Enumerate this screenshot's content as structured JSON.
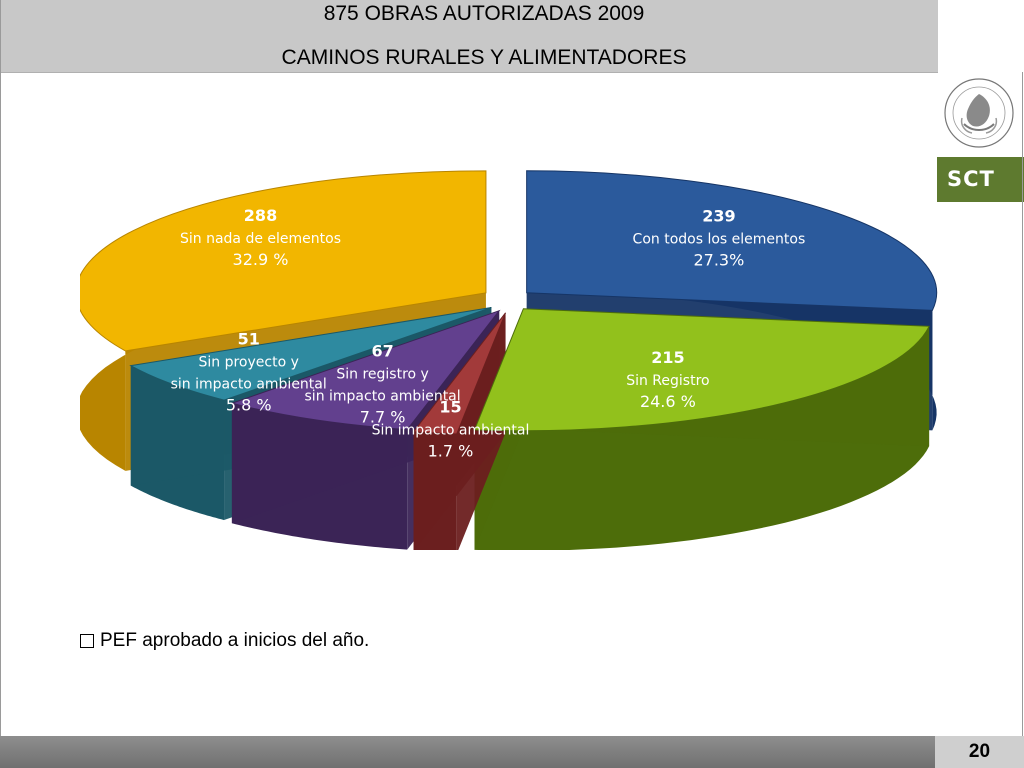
{
  "header": {
    "title": "875 OBRAS AUTORIZADAS 2009",
    "subtitle": "CAMINOS RURALES Y ALIMENTADORES"
  },
  "logo": {
    "badge_text": "SCT",
    "seal_text": "ESTADOS UNIDOS MEXICANOS"
  },
  "note": "PEF aprobado a inicios del año.",
  "page_number": "20",
  "colors": {
    "header_bg": "#c8c8c8",
    "sct_green": "#5e7a2f",
    "footer": "#808080"
  },
  "chart_data": {
    "type": "pie",
    "slices": [
      {
        "value": "239",
        "label": "Con todos los elementos",
        "percent": "27.3%",
        "pct": 27.3,
        "color": "#2b5a9c",
        "dark": "#163566"
      },
      {
        "value": "215",
        "label": "Sin Registro",
        "percent": "24.6 %",
        "pct": 24.6,
        "color": "#92c11c",
        "dark": "#4d6d0a"
      },
      {
        "value": "15",
        "label": "Sin impacto ambiental",
        "percent": "1.7 %",
        "pct": 1.7,
        "color": "#a23a3a",
        "dark": "#6b1f1f"
      },
      {
        "value": "67",
        "label": "Sin registro y sin impacto ambiental",
        "percent": "7.7 %",
        "pct": 7.7,
        "color": "#62408e",
        "dark": "#3b2456"
      },
      {
        "value": "51",
        "label": "Sin proyecto  y sin impacto ambiental",
        "percent": "5.8 %",
        "pct": 5.8,
        "color": "#2e8aa0",
        "dark": "#1b5867"
      },
      {
        "value": "288",
        "label": "Sin nada de elementos",
        "percent": "32.9 %",
        "pct": 32.9,
        "color": "#f2b600",
        "dark": "#b88500"
      }
    ]
  }
}
